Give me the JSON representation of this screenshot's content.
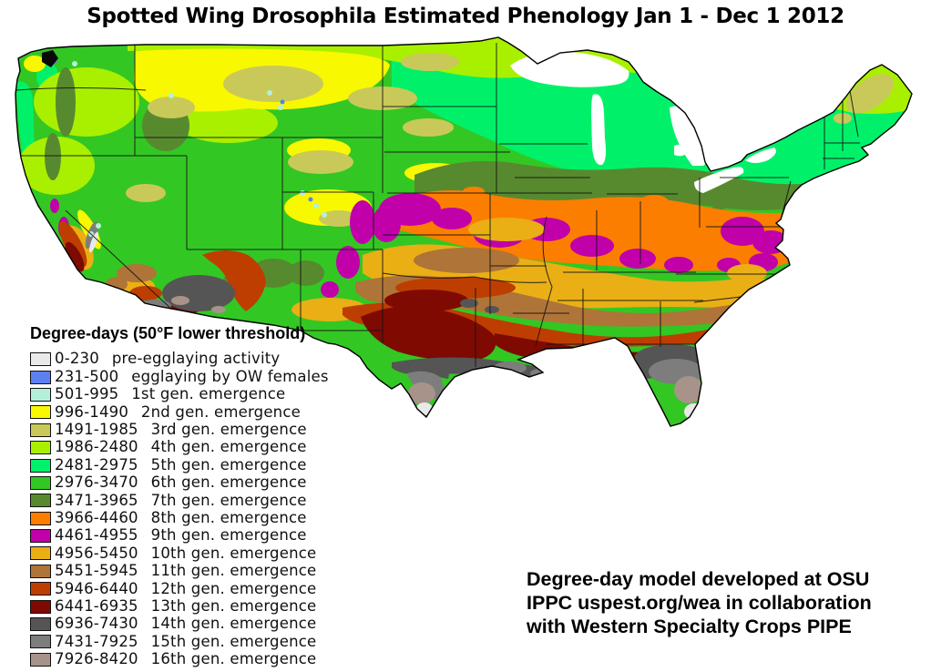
{
  "title": "Spotted Wing Drosophila Estimated Phenology Jan 1 - Dec 1 2012",
  "map": {
    "name": "Continental United States degree-day phenology map",
    "outline_color": "#000000",
    "water_color": "#FFFFFF"
  },
  "legend": {
    "title": "Degree-days (50°F lower threshold)",
    "entries": [
      {
        "range": "0-230",
        "label": "pre-egglaying activity",
        "color": "#E9E9E9"
      },
      {
        "range": "231-500",
        "label": "egglaying by OW females",
        "color": "#5C80F0"
      },
      {
        "range": "501-995",
        "label": "1st gen. emergence",
        "color": "#B2F0DA"
      },
      {
        "range": "996-1490",
        "label": "2nd gen. emergence",
        "color": "#F8F800"
      },
      {
        "range": "1491-1985",
        "label": "3rd gen. emergence",
        "color": "#C9C959"
      },
      {
        "range": "1986-2480",
        "label": "4th gen. emergence",
        "color": "#A9F000"
      },
      {
        "range": "2481-2975",
        "label": "5th gen. emergence",
        "color": "#00F169"
      },
      {
        "range": "2976-3470",
        "label": "6th gen. emergence",
        "color": "#33C724"
      },
      {
        "range": "3471-3965",
        "label": "7th gen. emergence",
        "color": "#578A2E"
      },
      {
        "range": "3966-4460",
        "label": "8th gen. emergence",
        "color": "#FB7E00"
      },
      {
        "range": "4461-4955",
        "label": "9th gen. emergence",
        "color": "#C100A9"
      },
      {
        "range": "4956-5450",
        "label": "10th gen. emergence",
        "color": "#E9AF15"
      },
      {
        "range": "5451-5945",
        "label": "11th gen. emergence",
        "color": "#AF7437"
      },
      {
        "range": "5946-6440",
        "label": "12th gen. emergence",
        "color": "#BD3E00"
      },
      {
        "range": "6441-6935",
        "label": "13th gen. emergence",
        "color": "#7E0A02"
      },
      {
        "range": "6936-7430",
        "label": "14th gen. emergence",
        "color": "#555555"
      },
      {
        "range": "7431-7925",
        "label": "15th gen. emergence",
        "color": "#7D7D7D"
      },
      {
        "range": "7926-8420",
        "label": "16th gen. emergence",
        "color": "#A79389"
      }
    ]
  },
  "credit": {
    "lines": [
      "Degree-day model developed at OSU",
      "IPPC uspest.org/wea in collaboration",
      "with Western Specialty Crops PIPE"
    ]
  }
}
